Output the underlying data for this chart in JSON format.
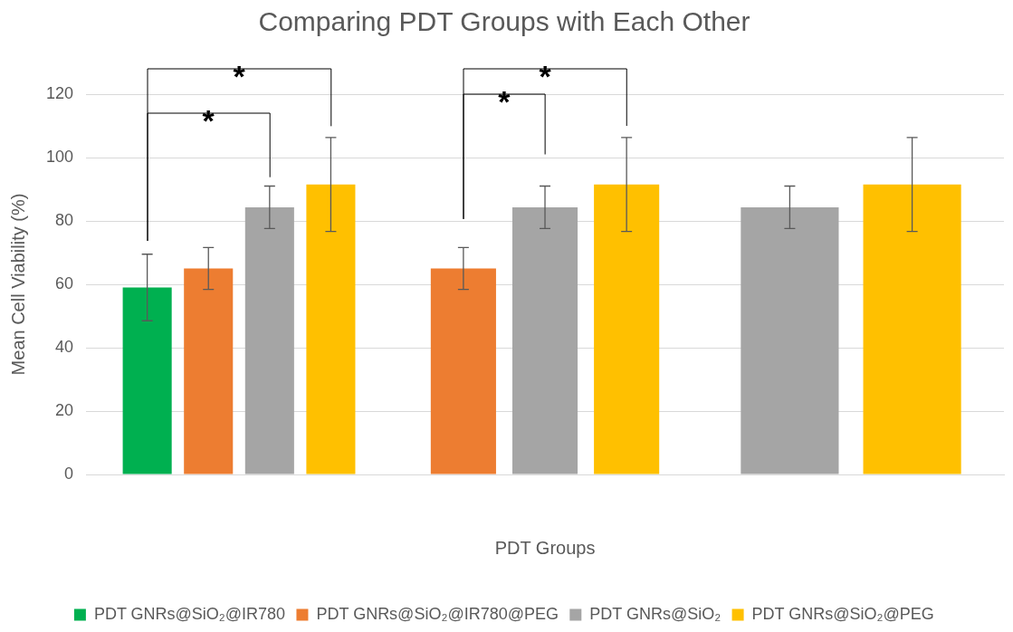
{
  "chart_data": {
    "type": "bar",
    "title": "Comparing PDT Groups with Each Other",
    "xlabel": "PDT Groups",
    "ylabel": "Mean Cell Viability (%)",
    "categories": [
      null,
      null,
      null
    ],
    "series": [
      {
        "name": "PDT GNRs@SiO₂@IR780",
        "color": "#00b050",
        "values": [
          59,
          null,
          null
        ],
        "errors": [
          10.5,
          null,
          null
        ]
      },
      {
        "name": "PDT GNRs@SiO₂@IR780@PEG",
        "color": "#ed7d31",
        "values": [
          65,
          65,
          null
        ],
        "errors": [
          6.6,
          6.6,
          null
        ]
      },
      {
        "name": "PDT GNRs@SiO₂",
        "color": "#a5a5a5",
        "values": [
          84.3,
          84.3,
          84.3
        ],
        "errors": [
          6.7,
          6.7,
          6.7
        ]
      },
      {
        "name": "PDT GNRs@SiO₂@PEG",
        "color": "#ffc000",
        "values": [
          91.5,
          91.5,
          91.5
        ],
        "errors": [
          14.8,
          14.8,
          14.8
        ]
      }
    ],
    "ylim": [
      0,
      120
    ],
    "yticks": [
      0,
      20,
      40,
      60,
      80,
      100,
      120
    ],
    "grid": "y",
    "legend": "bottom",
    "annotations": [
      "*",
      "*",
      "*",
      "*"
    ]
  }
}
